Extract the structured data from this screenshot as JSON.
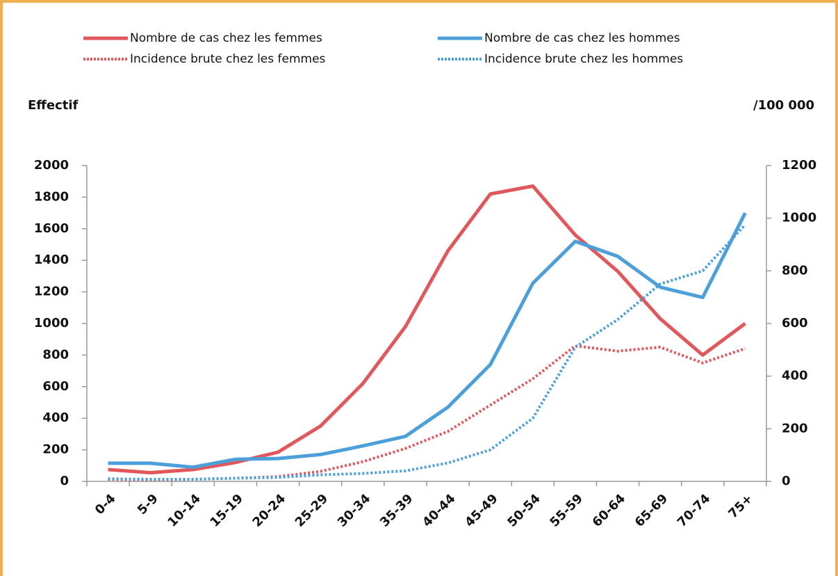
{
  "chart_data": {
    "type": "line",
    "y_label": "Effectif",
    "y2_label": "/100 000",
    "categories": [
      "0-4",
      "5-9",
      "10-14",
      "15-19",
      "20-24",
      "25-29",
      "30-34",
      "35-39",
      "40-44",
      "45-49",
      "50-54",
      "55-59",
      "60-64",
      "65-69",
      "70-74",
      "75+"
    ],
    "series": [
      {
        "name": "Nombre de cas chez les femmes",
        "color": "#e0575c",
        "line_style": "solid",
        "values": [
          75,
          55,
          75,
          120,
          185,
          350,
          620,
          980,
          1460,
          1820,
          1870,
          1560,
          1330,
          1030,
          800,
          1000
        ]
      },
      {
        "name": "Nombre de cas chez les hommes",
        "color": "#4ca0d9",
        "line_style": "solid",
        "values": [
          115,
          115,
          90,
          140,
          145,
          170,
          225,
          285,
          470,
          740,
          1255,
          1520,
          1425,
          1230,
          1165,
          1700
        ]
      },
      {
        "name": "Incidence brute chez les femmes",
        "color": "#e0575c",
        "line_style": "dotted",
        "axis": "y2",
        "values": [
          8,
          6,
          8,
          12,
          18,
          38,
          75,
          125,
          190,
          290,
          390,
          515,
          495,
          510,
          450,
          505
        ]
      },
      {
        "name": "Incidence brute chez les hommes",
        "color": "#4ca0d9",
        "line_style": "dotted",
        "axis": "y2",
        "values": [
          10,
          8,
          8,
          12,
          15,
          25,
          30,
          40,
          70,
          120,
          240,
          510,
          615,
          750,
          800,
          975
        ]
      }
    ],
    "ylim": [
      0,
      2000
    ],
    "yticks": [
      0,
      200,
      400,
      600,
      800,
      1000,
      1200,
      1400,
      1600,
      1800,
      2000
    ],
    "y2lim": [
      0,
      1200
    ],
    "y2ticks": [
      0,
      200,
      400,
      600,
      800,
      1000,
      1200
    ]
  }
}
